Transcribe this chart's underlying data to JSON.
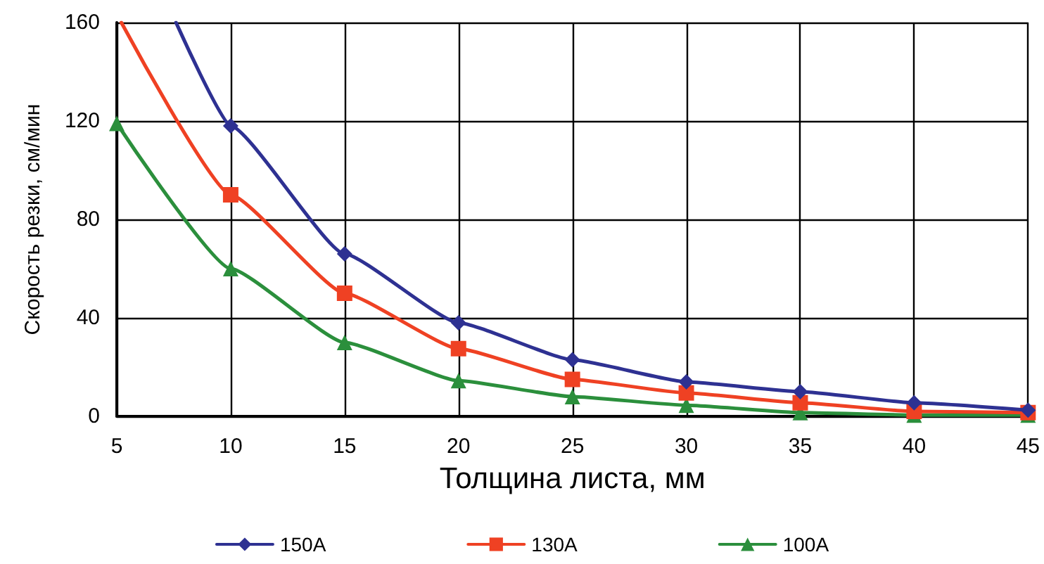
{
  "chart_data": {
    "type": "line",
    "xlabel": "Толщина листа, мм",
    "ylabel": "Скорость резки, см/мин",
    "xlim": [
      5,
      45
    ],
    "xticks": [
      5,
      10,
      15,
      20,
      25,
      30,
      35,
      40,
      45
    ],
    "ylim": [
      0,
      160
    ],
    "yticks": [
      0,
      40,
      80,
      120,
      160
    ],
    "grid": true,
    "legend": "bottom",
    "series": [
      {
        "name": "150A",
        "color": "#2e3192",
        "marker": "diamond",
        "x": [
          7.6,
          10,
          15,
          20,
          25,
          30,
          35,
          40,
          45
        ],
        "values": [
          160,
          118,
          66,
          38,
          23,
          14,
          10,
          5.5,
          2.5
        ]
      },
      {
        "name": "130A",
        "color": "#ef4123",
        "marker": "square",
        "x": [
          5.2,
          10,
          15,
          20,
          25,
          30,
          35,
          40,
          45
        ],
        "values": [
          160,
          90,
          50,
          27.5,
          15,
          9.5,
          5.5,
          2,
          1.5
        ]
      },
      {
        "name": "100A",
        "color": "#2b8f3c",
        "marker": "triangle",
        "x": [
          5,
          10,
          15,
          20,
          25,
          30,
          35,
          40,
          45
        ],
        "values": [
          119,
          60,
          30,
          14.5,
          8,
          4.5,
          1.5,
          0.5,
          0.5
        ]
      }
    ]
  }
}
